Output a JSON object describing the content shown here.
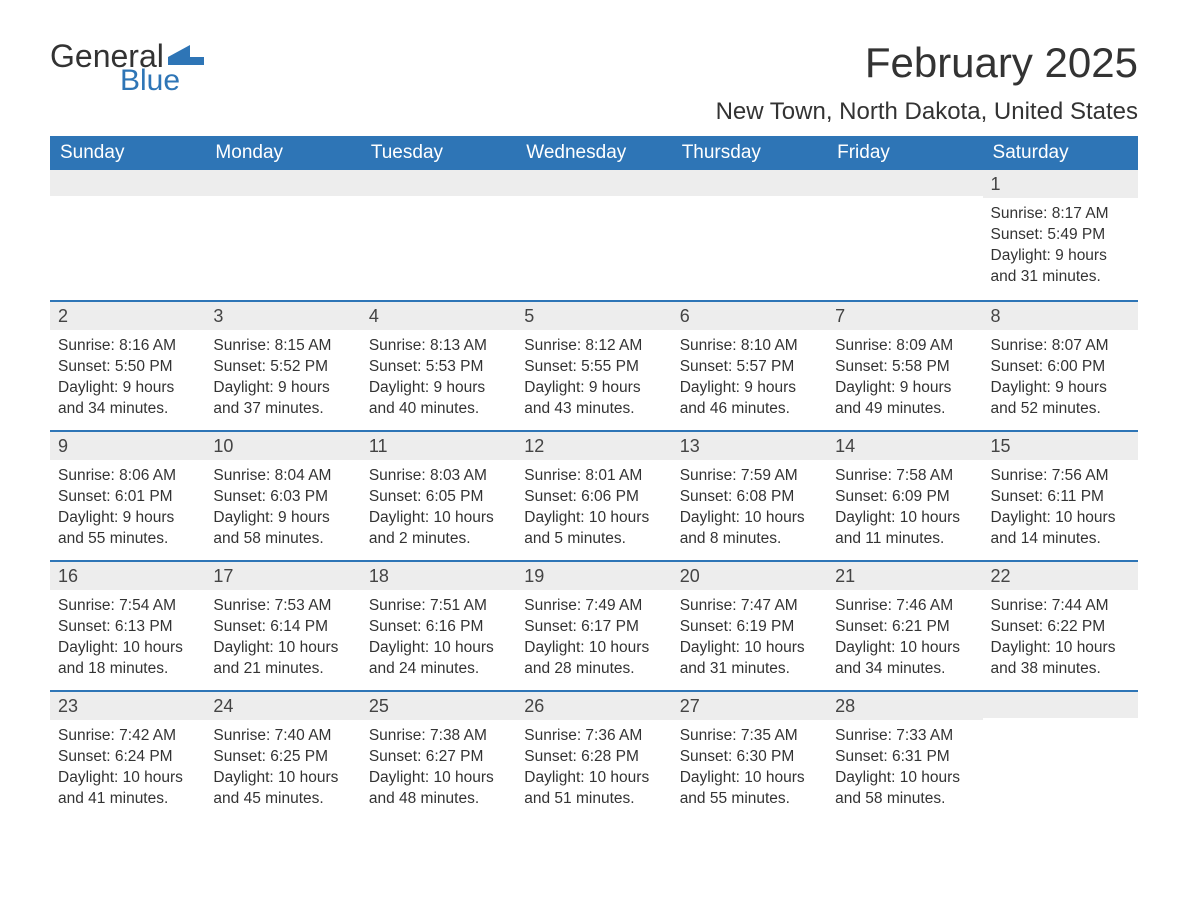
{
  "logo": {
    "word1": "General",
    "word2": "Blue"
  },
  "colors": {
    "header_bg": "#2e75b6",
    "header_text": "#ffffff",
    "row_border": "#2e75b6",
    "daynum_bg": "#ededed",
    "text": "#333333",
    "background": "#ffffff",
    "logo_blue": "#2e75b6"
  },
  "typography": {
    "title_fontsize": 42,
    "location_fontsize": 24,
    "dayheader_fontsize": 19,
    "cell_fontsize": 15.5,
    "font_family": "Segoe UI, Arial, sans-serif"
  },
  "title": "February 2025",
  "location": "New Town, North Dakota, United States",
  "day_names": [
    "Sunday",
    "Monday",
    "Tuesday",
    "Wednesday",
    "Thursday",
    "Friday",
    "Saturday"
  ],
  "weeks": [
    [
      {
        "day": "",
        "sunrise": "",
        "sunset": "",
        "daylight": ""
      },
      {
        "day": "",
        "sunrise": "",
        "sunset": "",
        "daylight": ""
      },
      {
        "day": "",
        "sunrise": "",
        "sunset": "",
        "daylight": ""
      },
      {
        "day": "",
        "sunrise": "",
        "sunset": "",
        "daylight": ""
      },
      {
        "day": "",
        "sunrise": "",
        "sunset": "",
        "daylight": ""
      },
      {
        "day": "",
        "sunrise": "",
        "sunset": "",
        "daylight": ""
      },
      {
        "day": "1",
        "sunrise": "Sunrise: 8:17 AM",
        "sunset": "Sunset: 5:49 PM",
        "daylight": "Daylight: 9 hours and 31 minutes."
      }
    ],
    [
      {
        "day": "2",
        "sunrise": "Sunrise: 8:16 AM",
        "sunset": "Sunset: 5:50 PM",
        "daylight": "Daylight: 9 hours and 34 minutes."
      },
      {
        "day": "3",
        "sunrise": "Sunrise: 8:15 AM",
        "sunset": "Sunset: 5:52 PM",
        "daylight": "Daylight: 9 hours and 37 minutes."
      },
      {
        "day": "4",
        "sunrise": "Sunrise: 8:13 AM",
        "sunset": "Sunset: 5:53 PM",
        "daylight": "Daylight: 9 hours and 40 minutes."
      },
      {
        "day": "5",
        "sunrise": "Sunrise: 8:12 AM",
        "sunset": "Sunset: 5:55 PM",
        "daylight": "Daylight: 9 hours and 43 minutes."
      },
      {
        "day": "6",
        "sunrise": "Sunrise: 8:10 AM",
        "sunset": "Sunset: 5:57 PM",
        "daylight": "Daylight: 9 hours and 46 minutes."
      },
      {
        "day": "7",
        "sunrise": "Sunrise: 8:09 AM",
        "sunset": "Sunset: 5:58 PM",
        "daylight": "Daylight: 9 hours and 49 minutes."
      },
      {
        "day": "8",
        "sunrise": "Sunrise: 8:07 AM",
        "sunset": "Sunset: 6:00 PM",
        "daylight": "Daylight: 9 hours and 52 minutes."
      }
    ],
    [
      {
        "day": "9",
        "sunrise": "Sunrise: 8:06 AM",
        "sunset": "Sunset: 6:01 PM",
        "daylight": "Daylight: 9 hours and 55 minutes."
      },
      {
        "day": "10",
        "sunrise": "Sunrise: 8:04 AM",
        "sunset": "Sunset: 6:03 PM",
        "daylight": "Daylight: 9 hours and 58 minutes."
      },
      {
        "day": "11",
        "sunrise": "Sunrise: 8:03 AM",
        "sunset": "Sunset: 6:05 PM",
        "daylight": "Daylight: 10 hours and 2 minutes."
      },
      {
        "day": "12",
        "sunrise": "Sunrise: 8:01 AM",
        "sunset": "Sunset: 6:06 PM",
        "daylight": "Daylight: 10 hours and 5 minutes."
      },
      {
        "day": "13",
        "sunrise": "Sunrise: 7:59 AM",
        "sunset": "Sunset: 6:08 PM",
        "daylight": "Daylight: 10 hours and 8 minutes."
      },
      {
        "day": "14",
        "sunrise": "Sunrise: 7:58 AM",
        "sunset": "Sunset: 6:09 PM",
        "daylight": "Daylight: 10 hours and 11 minutes."
      },
      {
        "day": "15",
        "sunrise": "Sunrise: 7:56 AM",
        "sunset": "Sunset: 6:11 PM",
        "daylight": "Daylight: 10 hours and 14 minutes."
      }
    ],
    [
      {
        "day": "16",
        "sunrise": "Sunrise: 7:54 AM",
        "sunset": "Sunset: 6:13 PM",
        "daylight": "Daylight: 10 hours and 18 minutes."
      },
      {
        "day": "17",
        "sunrise": "Sunrise: 7:53 AM",
        "sunset": "Sunset: 6:14 PM",
        "daylight": "Daylight: 10 hours and 21 minutes."
      },
      {
        "day": "18",
        "sunrise": "Sunrise: 7:51 AM",
        "sunset": "Sunset: 6:16 PM",
        "daylight": "Daylight: 10 hours and 24 minutes."
      },
      {
        "day": "19",
        "sunrise": "Sunrise: 7:49 AM",
        "sunset": "Sunset: 6:17 PM",
        "daylight": "Daylight: 10 hours and 28 minutes."
      },
      {
        "day": "20",
        "sunrise": "Sunrise: 7:47 AM",
        "sunset": "Sunset: 6:19 PM",
        "daylight": "Daylight: 10 hours and 31 minutes."
      },
      {
        "day": "21",
        "sunrise": "Sunrise: 7:46 AM",
        "sunset": "Sunset: 6:21 PM",
        "daylight": "Daylight: 10 hours and 34 minutes."
      },
      {
        "day": "22",
        "sunrise": "Sunrise: 7:44 AM",
        "sunset": "Sunset: 6:22 PM",
        "daylight": "Daylight: 10 hours and 38 minutes."
      }
    ],
    [
      {
        "day": "23",
        "sunrise": "Sunrise: 7:42 AM",
        "sunset": "Sunset: 6:24 PM",
        "daylight": "Daylight: 10 hours and 41 minutes."
      },
      {
        "day": "24",
        "sunrise": "Sunrise: 7:40 AM",
        "sunset": "Sunset: 6:25 PM",
        "daylight": "Daylight: 10 hours and 45 minutes."
      },
      {
        "day": "25",
        "sunrise": "Sunrise: 7:38 AM",
        "sunset": "Sunset: 6:27 PM",
        "daylight": "Daylight: 10 hours and 48 minutes."
      },
      {
        "day": "26",
        "sunrise": "Sunrise: 7:36 AM",
        "sunset": "Sunset: 6:28 PM",
        "daylight": "Daylight: 10 hours and 51 minutes."
      },
      {
        "day": "27",
        "sunrise": "Sunrise: 7:35 AM",
        "sunset": "Sunset: 6:30 PM",
        "daylight": "Daylight: 10 hours and 55 minutes."
      },
      {
        "day": "28",
        "sunrise": "Sunrise: 7:33 AM",
        "sunset": "Sunset: 6:31 PM",
        "daylight": "Daylight: 10 hours and 58 minutes."
      },
      {
        "day": "",
        "sunrise": "",
        "sunset": "",
        "daylight": ""
      }
    ]
  ]
}
